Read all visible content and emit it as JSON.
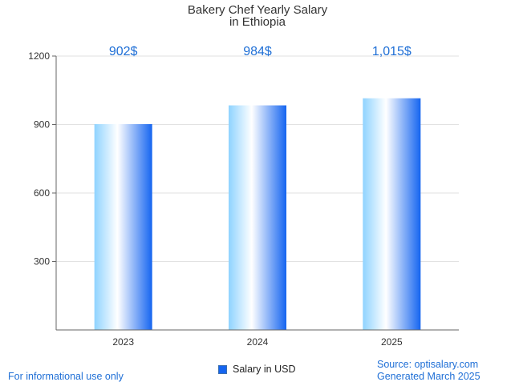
{
  "chart_data": {
    "type": "bar",
    "title": [
      "Bakery Chef Yearly Salary",
      "in Ethiopia"
    ],
    "categories": [
      "2023",
      "2024",
      "2025"
    ],
    "values": [
      902,
      984,
      1015
    ],
    "data_labels": [
      "902$",
      "984$",
      "1,015$"
    ],
    "series": [
      {
        "name": "Salary in USD",
        "values": [
          902,
          984,
          1015
        ]
      }
    ],
    "ylim": [
      0,
      1200
    ],
    "yticks": [
      300,
      600,
      900,
      1200
    ],
    "grid": true,
    "legend_position": "bottom-center",
    "bar_color_light": "#ffffff",
    "bar_color_mid": "#8fd3ff",
    "bar_color_dark": "#1565f0"
  },
  "footer": {
    "left": "For informational use only",
    "source": "Source: optisalary.com",
    "generated": "Generated March 2025"
  }
}
